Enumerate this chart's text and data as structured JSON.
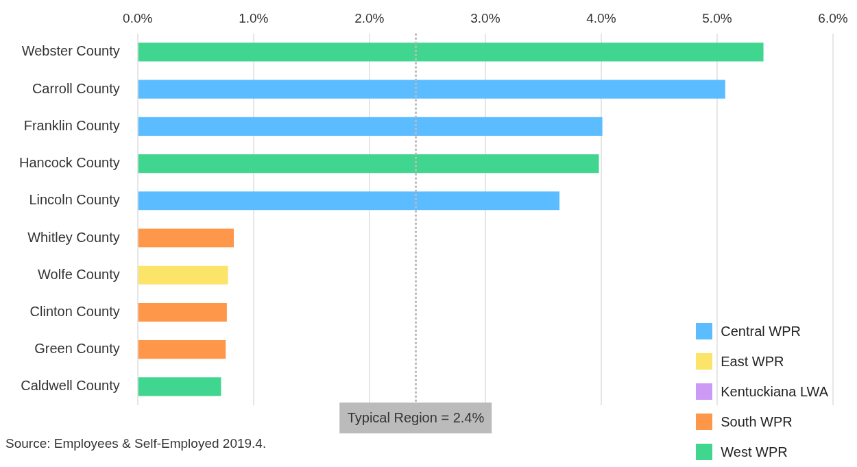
{
  "chart_data": {
    "type": "bar",
    "orientation": "horizontal",
    "stacked": true,
    "categories": [
      "Webster County",
      "Carroll County",
      "Franklin County",
      "Hancock County",
      "Lincoln County",
      "Whitley County",
      "Wolfe County",
      "Clinton County",
      "Green County",
      "Caldwell County"
    ],
    "series": [
      {
        "name": "Central WPR",
        "color": "#5bbcff",
        "values": [
          null,
          5.07,
          4.01,
          null,
          3.64,
          null,
          null,
          null,
          null,
          null
        ]
      },
      {
        "name": "East WPR",
        "color": "#fce46a",
        "values": [
          null,
          null,
          null,
          null,
          null,
          null,
          0.78,
          null,
          null,
          null
        ]
      },
      {
        "name": "Kentuckiana LWA",
        "color": "#cc99f5",
        "values": [
          null,
          null,
          null,
          null,
          null,
          null,
          null,
          null,
          null,
          null
        ]
      },
      {
        "name": "South WPR",
        "color": "#ff974a",
        "values": [
          null,
          null,
          null,
          null,
          null,
          0.83,
          null,
          0.77,
          0.76,
          null
        ]
      },
      {
        "name": "West WPR",
        "color": "#40d690",
        "values": [
          5.4,
          null,
          null,
          3.98,
          null,
          null,
          null,
          null,
          null,
          0.72
        ]
      }
    ],
    "xlim": [
      0,
      6
    ],
    "xticks": [
      {
        "value": 0,
        "label": "0.0%"
      },
      {
        "value": 1,
        "label": "1.0%"
      },
      {
        "value": 2,
        "label": "2.0%"
      },
      {
        "value": 3,
        "label": "3.0%"
      },
      {
        "value": 4,
        "label": "4.0%"
      },
      {
        "value": 5,
        "label": "5.0%"
      },
      {
        "value": 6,
        "label": "6.0%"
      }
    ],
    "grid": "x",
    "legend": "bottom right",
    "ref_lines": [
      {
        "axis": "x",
        "value": 2.4,
        "label": "Typical Region = 2.4%",
        "color": "#bbbbbb",
        "line_style": "dotted"
      }
    ],
    "annotations": [
      "Source: Employees & Self-Employed 2019.4."
    ]
  }
}
